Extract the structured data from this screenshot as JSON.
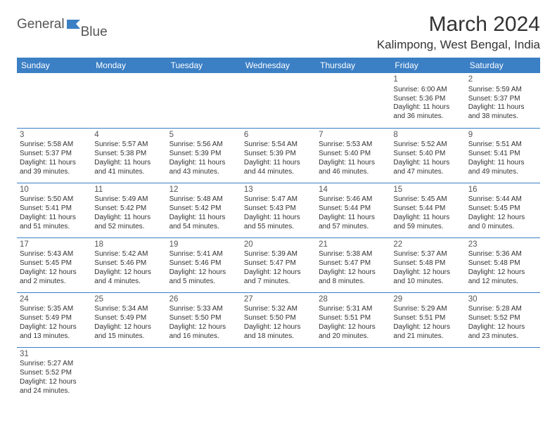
{
  "logo": {
    "general": "General",
    "blue": "Blue"
  },
  "title": "March 2024",
  "location": "Kalimpong, West Bengal, India",
  "colors": {
    "header_bg": "#3b7fc4",
    "header_text": "#ffffff",
    "body_text": "#333333",
    "day_text": "#555555",
    "border": "#3b7fc4",
    "page_bg": "#ffffff"
  },
  "weekdays": [
    "Sunday",
    "Monday",
    "Tuesday",
    "Wednesday",
    "Thursday",
    "Friday",
    "Saturday"
  ],
  "calendar": {
    "first_day_index": 5,
    "days_in_month": 31
  },
  "days": {
    "1": {
      "sunrise": "6:00 AM",
      "sunset": "5:36 PM",
      "daylight1": "Daylight: 11 hours",
      "daylight2": "and 36 minutes."
    },
    "2": {
      "sunrise": "5:59 AM",
      "sunset": "5:37 PM",
      "daylight1": "Daylight: 11 hours",
      "daylight2": "and 38 minutes."
    },
    "3": {
      "sunrise": "5:58 AM",
      "sunset": "5:37 PM",
      "daylight1": "Daylight: 11 hours",
      "daylight2": "and 39 minutes."
    },
    "4": {
      "sunrise": "5:57 AM",
      "sunset": "5:38 PM",
      "daylight1": "Daylight: 11 hours",
      "daylight2": "and 41 minutes."
    },
    "5": {
      "sunrise": "5:56 AM",
      "sunset": "5:39 PM",
      "daylight1": "Daylight: 11 hours",
      "daylight2": "and 43 minutes."
    },
    "6": {
      "sunrise": "5:54 AM",
      "sunset": "5:39 PM",
      "daylight1": "Daylight: 11 hours",
      "daylight2": "and 44 minutes."
    },
    "7": {
      "sunrise": "5:53 AM",
      "sunset": "5:40 PM",
      "daylight1": "Daylight: 11 hours",
      "daylight2": "and 46 minutes."
    },
    "8": {
      "sunrise": "5:52 AM",
      "sunset": "5:40 PM",
      "daylight1": "Daylight: 11 hours",
      "daylight2": "and 47 minutes."
    },
    "9": {
      "sunrise": "5:51 AM",
      "sunset": "5:41 PM",
      "daylight1": "Daylight: 11 hours",
      "daylight2": "and 49 minutes."
    },
    "10": {
      "sunrise": "5:50 AM",
      "sunset": "5:41 PM",
      "daylight1": "Daylight: 11 hours",
      "daylight2": "and 51 minutes."
    },
    "11": {
      "sunrise": "5:49 AM",
      "sunset": "5:42 PM",
      "daylight1": "Daylight: 11 hours",
      "daylight2": "and 52 minutes."
    },
    "12": {
      "sunrise": "5:48 AM",
      "sunset": "5:42 PM",
      "daylight1": "Daylight: 11 hours",
      "daylight2": "and 54 minutes."
    },
    "13": {
      "sunrise": "5:47 AM",
      "sunset": "5:43 PM",
      "daylight1": "Daylight: 11 hours",
      "daylight2": "and 55 minutes."
    },
    "14": {
      "sunrise": "5:46 AM",
      "sunset": "5:44 PM",
      "daylight1": "Daylight: 11 hours",
      "daylight2": "and 57 minutes."
    },
    "15": {
      "sunrise": "5:45 AM",
      "sunset": "5:44 PM",
      "daylight1": "Daylight: 11 hours",
      "daylight2": "and 59 minutes."
    },
    "16": {
      "sunrise": "5:44 AM",
      "sunset": "5:45 PM",
      "daylight1": "Daylight: 12 hours",
      "daylight2": "and 0 minutes."
    },
    "17": {
      "sunrise": "5:43 AM",
      "sunset": "5:45 PM",
      "daylight1": "Daylight: 12 hours",
      "daylight2": "and 2 minutes."
    },
    "18": {
      "sunrise": "5:42 AM",
      "sunset": "5:46 PM",
      "daylight1": "Daylight: 12 hours",
      "daylight2": "and 4 minutes."
    },
    "19": {
      "sunrise": "5:41 AM",
      "sunset": "5:46 PM",
      "daylight1": "Daylight: 12 hours",
      "daylight2": "and 5 minutes."
    },
    "20": {
      "sunrise": "5:39 AM",
      "sunset": "5:47 PM",
      "daylight1": "Daylight: 12 hours",
      "daylight2": "and 7 minutes."
    },
    "21": {
      "sunrise": "5:38 AM",
      "sunset": "5:47 PM",
      "daylight1": "Daylight: 12 hours",
      "daylight2": "and 8 minutes."
    },
    "22": {
      "sunrise": "5:37 AM",
      "sunset": "5:48 PM",
      "daylight1": "Daylight: 12 hours",
      "daylight2": "and 10 minutes."
    },
    "23": {
      "sunrise": "5:36 AM",
      "sunset": "5:48 PM",
      "daylight1": "Daylight: 12 hours",
      "daylight2": "and 12 minutes."
    },
    "24": {
      "sunrise": "5:35 AM",
      "sunset": "5:49 PM",
      "daylight1": "Daylight: 12 hours",
      "daylight2": "and 13 minutes."
    },
    "25": {
      "sunrise": "5:34 AM",
      "sunset": "5:49 PM",
      "daylight1": "Daylight: 12 hours",
      "daylight2": "and 15 minutes."
    },
    "26": {
      "sunrise": "5:33 AM",
      "sunset": "5:50 PM",
      "daylight1": "Daylight: 12 hours",
      "daylight2": "and 16 minutes."
    },
    "27": {
      "sunrise": "5:32 AM",
      "sunset": "5:50 PM",
      "daylight1": "Daylight: 12 hours",
      "daylight2": "and 18 minutes."
    },
    "28": {
      "sunrise": "5:31 AM",
      "sunset": "5:51 PM",
      "daylight1": "Daylight: 12 hours",
      "daylight2": "and 20 minutes."
    },
    "29": {
      "sunrise": "5:29 AM",
      "sunset": "5:51 PM",
      "daylight1": "Daylight: 12 hours",
      "daylight2": "and 21 minutes."
    },
    "30": {
      "sunrise": "5:28 AM",
      "sunset": "5:52 PM",
      "daylight1": "Daylight: 12 hours",
      "daylight2": "and 23 minutes."
    },
    "31": {
      "sunrise": "5:27 AM",
      "sunset": "5:52 PM",
      "daylight1": "Daylight: 12 hours",
      "daylight2": "and 24 minutes."
    }
  }
}
